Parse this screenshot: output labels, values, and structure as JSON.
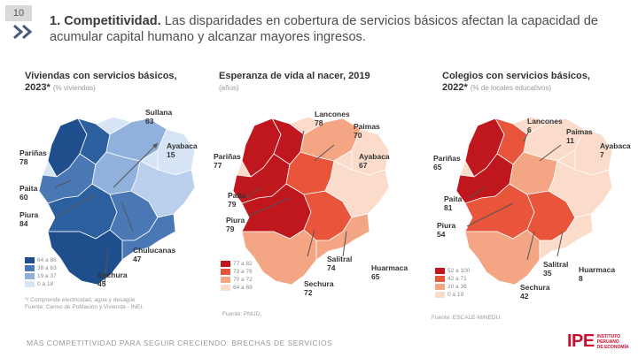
{
  "page_number": "10",
  "title": {
    "bold": "1. Competitividad.",
    "rest": " Las disparidades en cobertura de servicios básicos afectan la capacidad de acumular capital humano y alcanzar mayores ingresos."
  },
  "panels": [
    {
      "title": "Viviendas con servicios básicos,",
      "title2": "2023*",
      "subtitle": "(% viviendas)",
      "labels": [
        {
          "name": "Sullana",
          "value": "63"
        },
        {
          "name": "Ayabaca",
          "value": "15"
        },
        {
          "name": "Pariñas",
          "value": "78"
        },
        {
          "name": "Paita",
          "value": "60"
        },
        {
          "name": "Piura",
          "value": "84"
        },
        {
          "name": "Chulucanas",
          "value": "47"
        },
        {
          "name": "Sechura",
          "value": "45"
        }
      ],
      "legend": [
        {
          "label": "64 a 86",
          "color": "#1f4e8c"
        },
        {
          "label": "38 a 63",
          "color": "#4a78b5"
        },
        {
          "label": "19 a 37",
          "color": "#8fb1dc"
        },
        {
          "label": "0 a 18",
          "color": "#d6e4f5"
        }
      ],
      "note": "*/ Comprende electricidad, agua y desagüe",
      "source": "Fuente: Censo de Población y Vivienda - INEI."
    },
    {
      "title": "Esperanza de vida al nacer, 2019",
      "title2": "",
      "subtitle": "(años)",
      "labels": [
        {
          "name": "Lancones",
          "value": "78"
        },
        {
          "name": "Paimas",
          "value": "70"
        },
        {
          "name": "Ayabaca",
          "value": "67"
        },
        {
          "name": "Pariñas",
          "value": "77"
        },
        {
          "name": "Paita",
          "value": "79"
        },
        {
          "name": "Piura",
          "value": "79"
        },
        {
          "name": "Salitral",
          "value": "74"
        },
        {
          "name": "Huarmaca",
          "value": "65"
        },
        {
          "name": "Sechura",
          "value": "72"
        }
      ],
      "legend": [
        {
          "label": "77 a 82",
          "color": "#c0161d"
        },
        {
          "label": "73 a 76",
          "color": "#e8553a"
        },
        {
          "label": "70 a 72",
          "color": "#f4a583"
        },
        {
          "label": "64 a 69",
          "color": "#fbdcca"
        }
      ],
      "note": "",
      "source": "Fuente: PNUD."
    },
    {
      "title": "Colegios con servicios básicos,",
      "title2": "2022*",
      "subtitle": "(% de locales educativos)",
      "labels": [
        {
          "name": "Lancones",
          "value": "6"
        },
        {
          "name": "Paimas",
          "value": "11"
        },
        {
          "name": "Ayabaca",
          "value": "7"
        },
        {
          "name": "Pariñas",
          "value": "65"
        },
        {
          "name": "Paita",
          "value": "81"
        },
        {
          "name": "Piura",
          "value": "54"
        },
        {
          "name": "Salitral",
          "value": "35"
        },
        {
          "name": "Huarmaca",
          "value": "8"
        },
        {
          "name": "Sechura",
          "value": "42"
        }
      ],
      "legend": [
        {
          "label": "52 a 100",
          "color": "#c0161d"
        },
        {
          "label": "42 a 71",
          "color": "#e8553a"
        },
        {
          "label": "20 a 36",
          "color": "#f4a583"
        },
        {
          "label": "0 a 19",
          "color": "#fbdcca"
        }
      ],
      "note": "",
      "source": "Fuente: ESCALE-MINEDU."
    }
  ],
  "footer": "MÁS COMPETITIVIDAD PARA SEGUIR CRECIENDO: BRECHAS DE SERVICIOS",
  "logo": {
    "mark": "IPE",
    "line1": "INSTITUTO",
    "line2": "PERUANO",
    "line3": "DE ECONOMÍA"
  }
}
